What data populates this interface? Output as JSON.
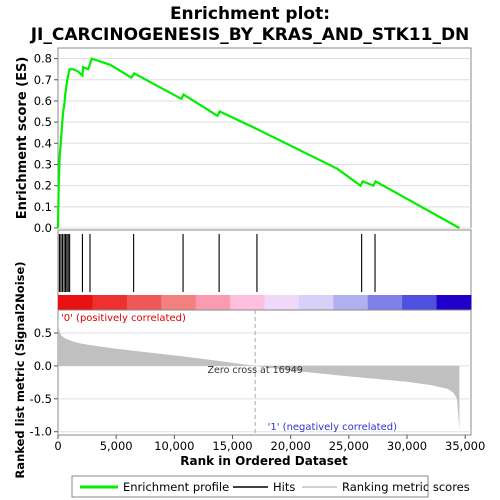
{
  "chart_data": [
    {
      "type": "line",
      "title": "Enrichment plot:",
      "subtitle": "JI_CARCINOGENESIS_BY_KRAS_AND_STK11_DN",
      "ylabel": "Enrichment score (ES)",
      "ylim": [
        0,
        0.85
      ],
      "yticks": [
        "0.0",
        "0.1",
        "0.2",
        "0.3",
        "0.4",
        "0.5",
        "0.6",
        "0.7",
        "0.8"
      ],
      "grid": true,
      "series": [
        {
          "name": "Enrichment profile",
          "color": "#00ee00",
          "x": [
            0,
            60,
            150,
            250,
            350,
            450,
            560,
            620,
            700,
            800,
            880,
            1000,
            1300,
            1700,
            2100,
            2150,
            2600,
            2900,
            4500,
            6300,
            6550,
            10600,
            10800,
            13700,
            13900,
            17000,
            24000,
            26000,
            26200,
            27100,
            27300,
            34500
          ],
          "y": [
            0,
            0.2,
            0.34,
            0.41,
            0.49,
            0.55,
            0.59,
            0.63,
            0.66,
            0.7,
            0.72,
            0.75,
            0.75,
            0.74,
            0.72,
            0.76,
            0.75,
            0.8,
            0.77,
            0.71,
            0.73,
            0.61,
            0.63,
            0.53,
            0.55,
            0.47,
            0.28,
            0.2,
            0.22,
            0.2,
            0.22,
            0
          ]
        }
      ]
    },
    {
      "type": "hits",
      "name": "Hits",
      "hit_ranks": [
        120,
        250,
        380,
        520,
        640,
        760,
        880,
        1000,
        2100,
        2750,
        6500,
        10750,
        13850,
        17100,
        26100,
        27250
      ],
      "xlim": [
        0,
        35500
      ]
    },
    {
      "type": "heatmap",
      "gradient": [
        "#e81010",
        "#ee3030",
        "#f05858",
        "#f28080",
        "#fb9bb0",
        "#ffc0e0",
        "#f0d8f8",
        "#d8d0f8",
        "#b0b0f0",
        "#8080e8",
        "#5050e0",
        "#2000c8"
      ],
      "label_positive": "'0' (positively correlated)",
      "label_negative": "'1' (negatively correlated)"
    },
    {
      "type": "area",
      "name": "Ranking metric scores",
      "ylabel": "Ranked list metric (Signal2Noise)",
      "xlabel": "Rank in Ordered Dataset",
      "xlim": [
        0,
        35500
      ],
      "ylim": [
        -1.05,
        0.85
      ],
      "yticks": [
        "-1.0",
        "-0.5",
        "0.0",
        "0.5"
      ],
      "xticks": [
        "0",
        "5,000",
        "10,000",
        "15,000",
        "20,000",
        "25,000",
        "30,000",
        "35,000"
      ],
      "x": [
        0,
        50,
        150,
        300,
        600,
        1000,
        1500,
        2000,
        3000,
        5000,
        8000,
        11000,
        14000,
        16949,
        20000,
        25000,
        30000,
        32000,
        33500,
        34000,
        34300,
        34500
      ],
      "y": [
        0.78,
        0.6,
        0.52,
        0.46,
        0.42,
        0.39,
        0.36,
        0.34,
        0.31,
        0.26,
        0.2,
        0.14,
        0.07,
        0,
        -0.07,
        -0.16,
        -0.24,
        -0.29,
        -0.35,
        -0.41,
        -0.5,
        -0.98
      ],
      "zero_cross_label": "Zero cross at 16949",
      "zero_cross": 16949
    }
  ],
  "legend": {
    "items": [
      {
        "label": "Enrichment profile",
        "color": "#00ee00"
      },
      {
        "label": "Hits",
        "color": "#000000"
      },
      {
        "label": "Ranking metric scores",
        "color": "#c0c0c0"
      }
    ]
  }
}
